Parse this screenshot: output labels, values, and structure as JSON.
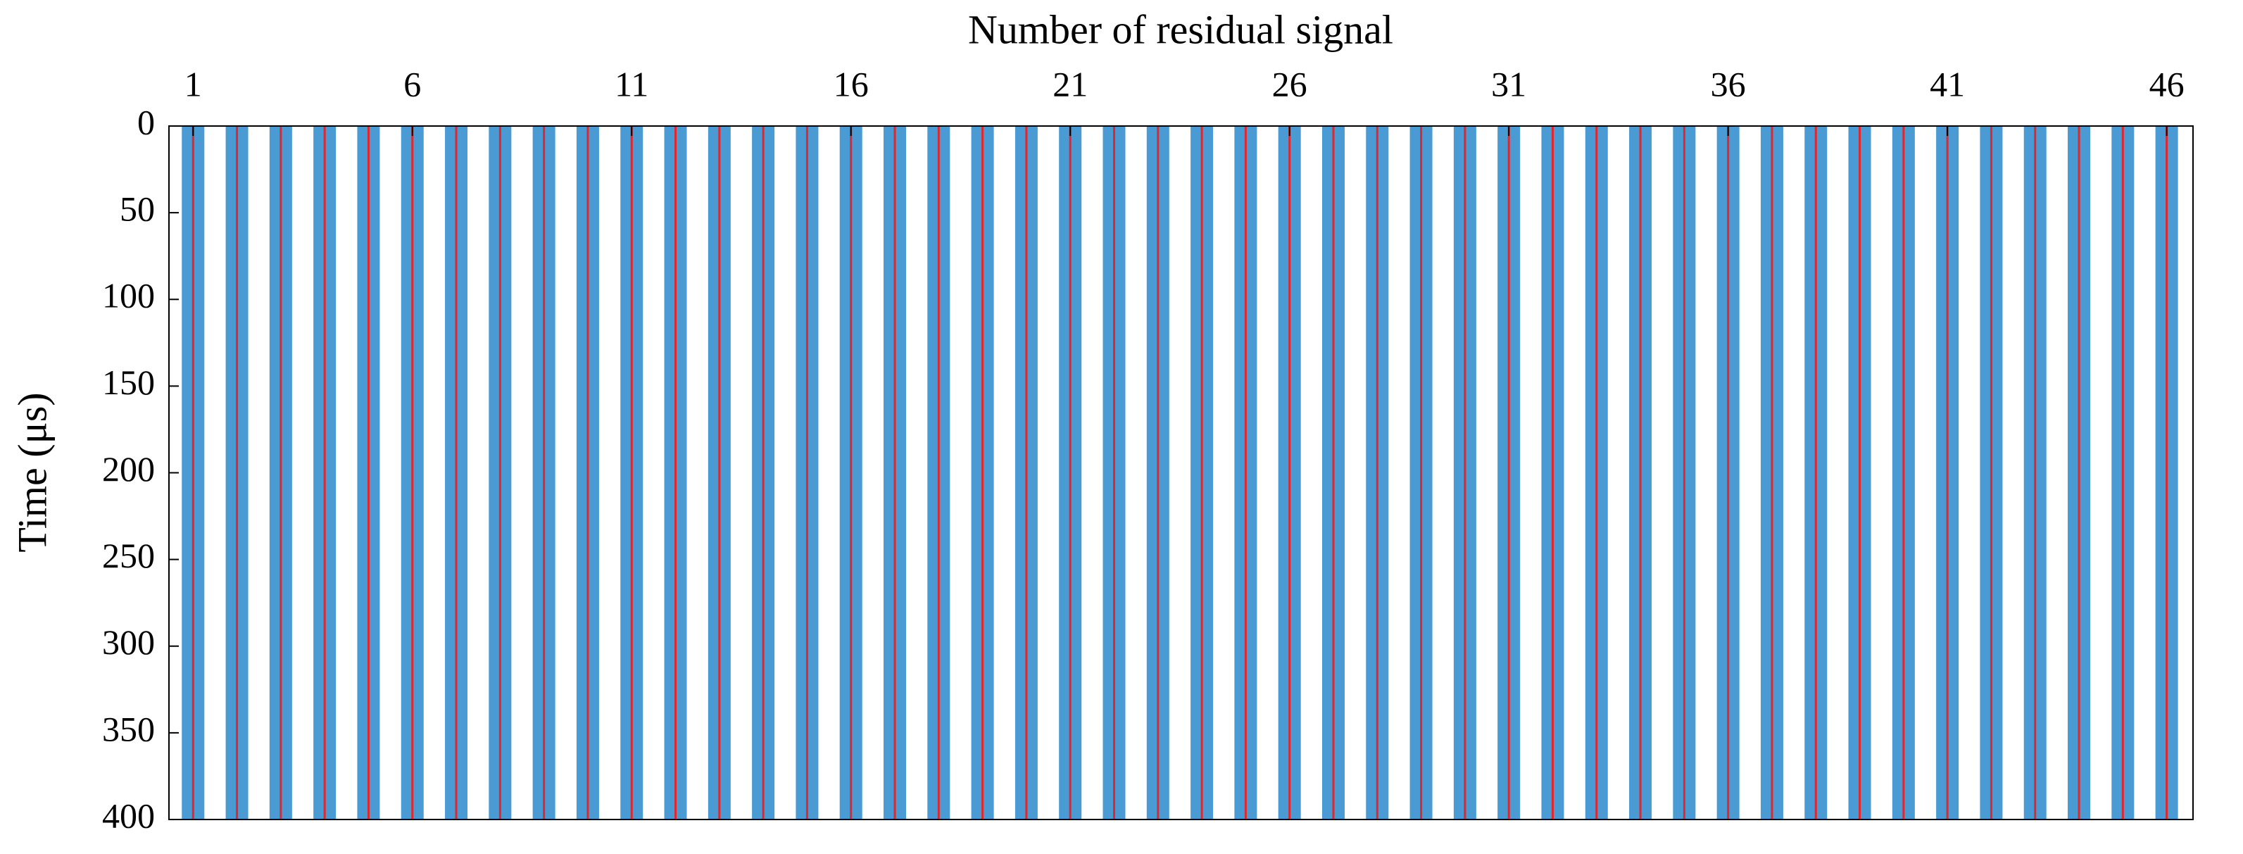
{
  "chart_data": {
    "type": "wiggle",
    "xlabel": "Number of residual signal",
    "ylabel": "Time (μs)",
    "x": [
      1,
      2,
      3,
      4,
      5,
      6,
      7,
      8,
      9,
      10,
      11,
      12,
      13,
      14,
      15,
      16,
      17,
      18,
      19,
      20,
      21,
      22,
      23,
      24,
      25,
      26,
      27,
      28,
      29,
      30,
      31,
      32,
      33,
      34,
      35,
      36,
      37,
      38,
      39,
      40,
      41,
      42,
      43,
      44,
      45,
      46
    ],
    "xlim": [
      0.45,
      46.6
    ],
    "xticks": [
      1,
      6,
      11,
      16,
      21,
      26,
      31,
      36,
      41,
      46
    ],
    "ylim": [
      0,
      400
    ],
    "yticks": [
      0,
      50,
      100,
      150,
      200,
      250,
      300,
      350,
      400
    ],
    "y_reversed": true,
    "color": "#4a9ad4",
    "highlight_color": "#e3262b"
  }
}
